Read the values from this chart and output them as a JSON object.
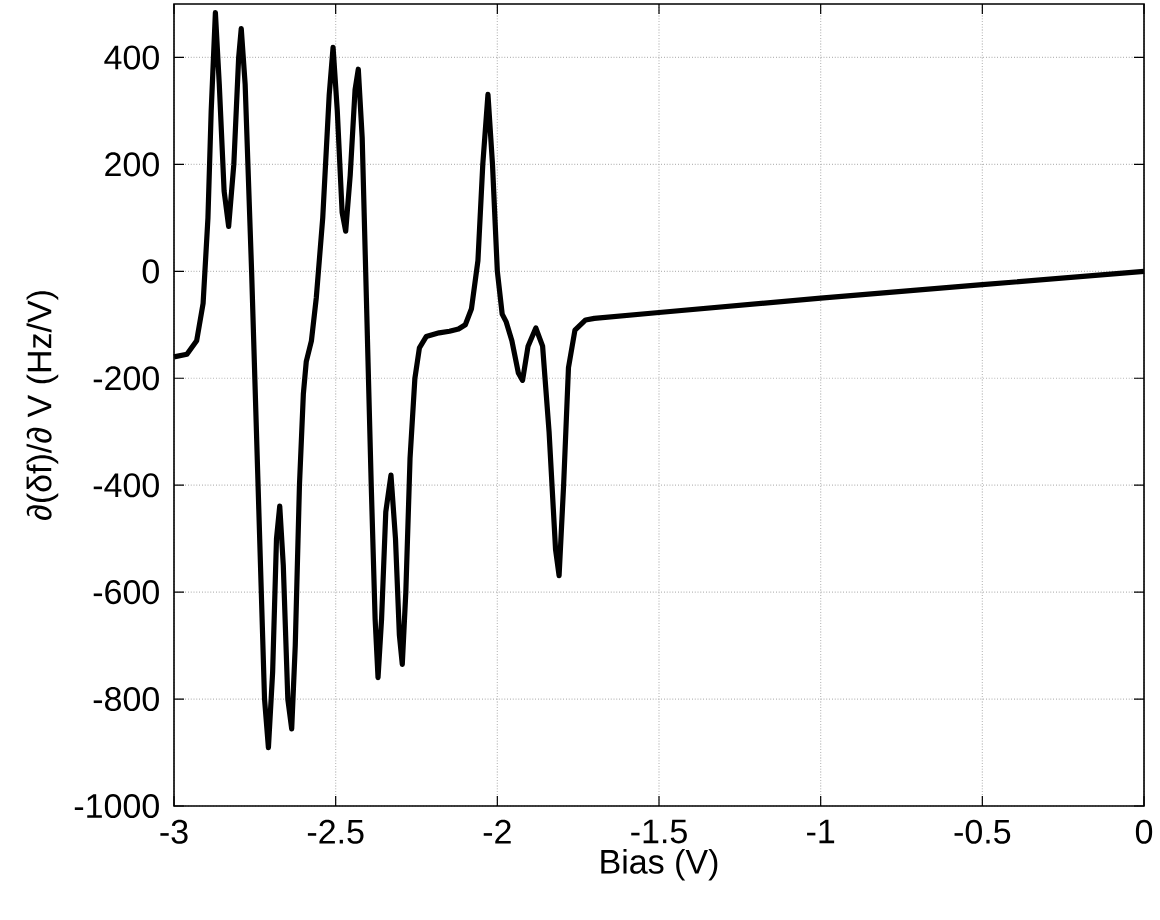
{
  "chart_data": {
    "type": "line",
    "xlabel": "Bias (V)",
    "ylabel": "∂(δf)/∂ V (Hz/V)",
    "xlim": [
      -3,
      0
    ],
    "ylim": [
      -1000,
      500
    ],
    "xticks": [
      -3,
      -2.5,
      -2,
      -1.5,
      -1,
      -0.5,
      0
    ],
    "yticks": [
      -1000,
      -800,
      -600,
      -400,
      -200,
      0,
      200,
      400
    ],
    "grid": true,
    "marker": "none",
    "line_style": "solid",
    "series": [
      {
        "color": "#000000",
        "x": [
          -3,
          -2.96,
          -2.93,
          -2.91,
          -2.895,
          -2.885,
          -2.872,
          -2.86,
          -2.845,
          -2.831,
          -2.815,
          -2.8,
          -2.792,
          -2.78,
          -2.76,
          -2.74,
          -2.72,
          -2.708,
          -2.695,
          -2.683,
          -2.673,
          -2.662,
          -2.648,
          -2.636,
          -2.625,
          -2.612,
          -2.6,
          -2.591,
          -2.575,
          -2.56,
          -2.54,
          -2.52,
          -2.508,
          -2.495,
          -2.48,
          -2.469,
          -2.455,
          -2.44,
          -2.43,
          -2.418,
          -2.405,
          -2.39,
          -2.378,
          -2.369,
          -2.358,
          -2.345,
          -2.329,
          -2.315,
          -2.303,
          -2.294,
          -2.283,
          -2.27,
          -2.255,
          -2.241,
          -2.22,
          -2.18,
          -2.148,
          -2.12,
          -2.099,
          -2.08,
          -2.06,
          -2.045,
          -2.029,
          -2.015,
          -2.0,
          -1.985,
          -1.973,
          -1.955,
          -1.935,
          -1.922,
          -1.905,
          -1.881,
          -1.86,
          -1.84,
          -1.82,
          -1.809,
          -1.795,
          -1.78,
          -1.76,
          -1.727,
          -1.7,
          -1.5,
          -1,
          -0.5,
          0
        ],
        "values": [
          -160,
          -155,
          -130,
          -60,
          100,
          300,
          484,
          350,
          150,
          84,
          200,
          400,
          454,
          350,
          0,
          -400,
          -800,
          -891,
          -750,
          -500,
          -439,
          -550,
          -800,
          -856,
          -700,
          -400,
          -230,
          -169,
          -130,
          -50,
          100,
          330,
          419,
          300,
          110,
          75,
          180,
          340,
          378,
          250,
          -50,
          -400,
          -650,
          -760,
          -650,
          -450,
          -381,
          -500,
          -680,
          -735,
          -600,
          -350,
          -200,
          -143,
          -122,
          -115,
          -112,
          -108,
          -100,
          -70,
          20,
          200,
          331,
          200,
          0,
          -80,
          -94,
          -130,
          -190,
          -204,
          -140,
          -106,
          -140,
          -300,
          -520,
          -569,
          -400,
          -180,
          -110,
          -91,
          -88,
          -77,
          -50,
          -25,
          0
        ]
      }
    ]
  }
}
